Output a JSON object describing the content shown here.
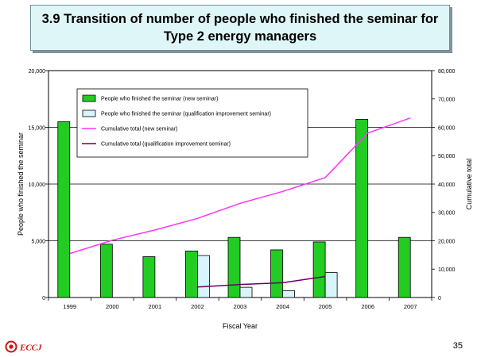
{
  "slide": {
    "title_line1": "3.9  Transition of number of people who finished the seminar for",
    "title_line2": "Type 2 energy managers",
    "page_number": "35",
    "logo_text": "ECCJ"
  },
  "colors": {
    "new_seminar_bar": "#22cc22",
    "qual_seminar_bar": "#d8f4fc",
    "cum_new_line": "#ff33ff",
    "cum_qual_line": "#660066",
    "logo_red": "#cc1111"
  },
  "chart_data": {
    "type": "bar",
    "categories": [
      "1999",
      "2000",
      "2001",
      "2002",
      "2003",
      "2004",
      "2005",
      "2006",
      "2007"
    ],
    "xlabel": "Fiscal Year",
    "ylabel": "People who finished the seminar",
    "y2label": "Cumulative total",
    "ylim": [
      0,
      20000
    ],
    "y2lim": [
      0,
      80000
    ],
    "yticks": [
      "0",
      "5,000",
      "10,000",
      "15,000",
      "20,000"
    ],
    "y2ticks": [
      "0",
      "10,000",
      "20,000",
      "30,000",
      "40,000",
      "50,000",
      "60,000",
      "70,000",
      "80,000"
    ],
    "grid": "horizontal",
    "legend_position": "top-left",
    "series": [
      {
        "name": "People who finished the seminar (new seminar)",
        "type": "bar",
        "axis": "left",
        "values": [
          15500,
          4700,
          3600,
          4100,
          5300,
          4200,
          4900,
          15700,
          5300
        ]
      },
      {
        "name": "People who finished the seminar (qualification improvement seminar)",
        "type": "bar",
        "axis": "left",
        "values": [
          null,
          null,
          null,
          3700,
          900,
          600,
          2200,
          null,
          null
        ]
      },
      {
        "name": "Cumulative total (new seminar)",
        "type": "line",
        "axis": "right",
        "values": [
          15500,
          20200,
          23800,
          27900,
          33200,
          37400,
          42300,
          58000,
          63300
        ]
      },
      {
        "name": "Cumulative total (qualification improvement seminar)",
        "type": "line",
        "axis": "right",
        "values": [
          null,
          null,
          null,
          3700,
          4600,
          5200,
          7400,
          null,
          null
        ]
      }
    ]
  }
}
